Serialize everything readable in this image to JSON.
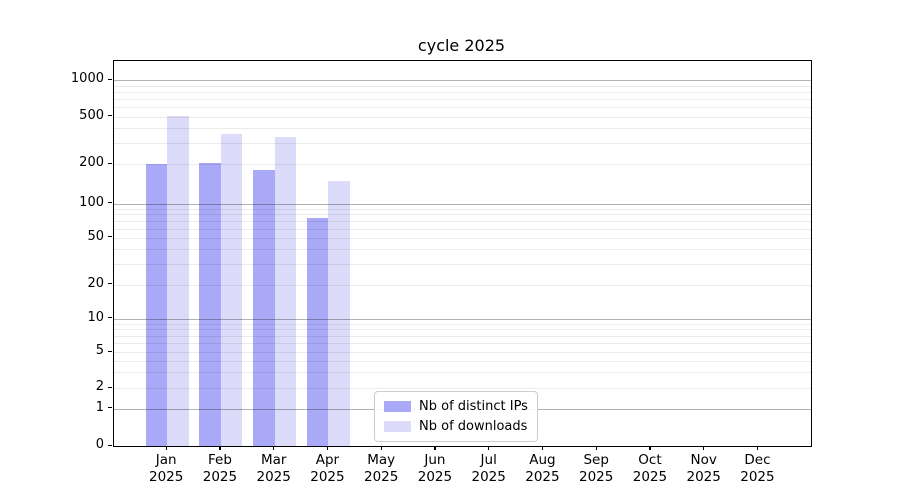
{
  "title": "cycle 2025",
  "colors": {
    "distinct_ips": "#a9a9f7",
    "downloads": "#dcdcfa",
    "major_grid": "#b3b3b3",
    "minor_grid": "#ebebeb",
    "axis": "#000000",
    "legend_border": "#cccccc"
  },
  "chart_data": {
    "type": "bar",
    "title": "cycle 2025",
    "categories": [
      "Jan 2025",
      "Feb 2025",
      "Mar 2025",
      "Apr 2025",
      "May 2025",
      "Jun 2025",
      "Jul 2025",
      "Aug 2025",
      "Sep 2025",
      "Oct 2025",
      "Nov 2025",
      "Dec 2025"
    ],
    "series": [
      {
        "name": "Nb of distinct IPs",
        "color": "#a9a9f7",
        "values": [
          200,
          204,
          182,
          74,
          null,
          null,
          null,
          null,
          null,
          null,
          null,
          null
        ]
      },
      {
        "name": "Nb of downloads",
        "color": "#dcdcfa",
        "values": [
          510,
          360,
          340,
          148,
          null,
          null,
          null,
          null,
          null,
          null,
          null,
          null
        ]
      }
    ],
    "xlabel": "",
    "ylabel": "",
    "y_scale": "symlog",
    "y_ticks": [
      0,
      1,
      2,
      5,
      10,
      20,
      50,
      100,
      200,
      500,
      1000
    ],
    "ylim": [
      0,
      1500
    ],
    "grid": true,
    "legend_position": "lower center"
  }
}
